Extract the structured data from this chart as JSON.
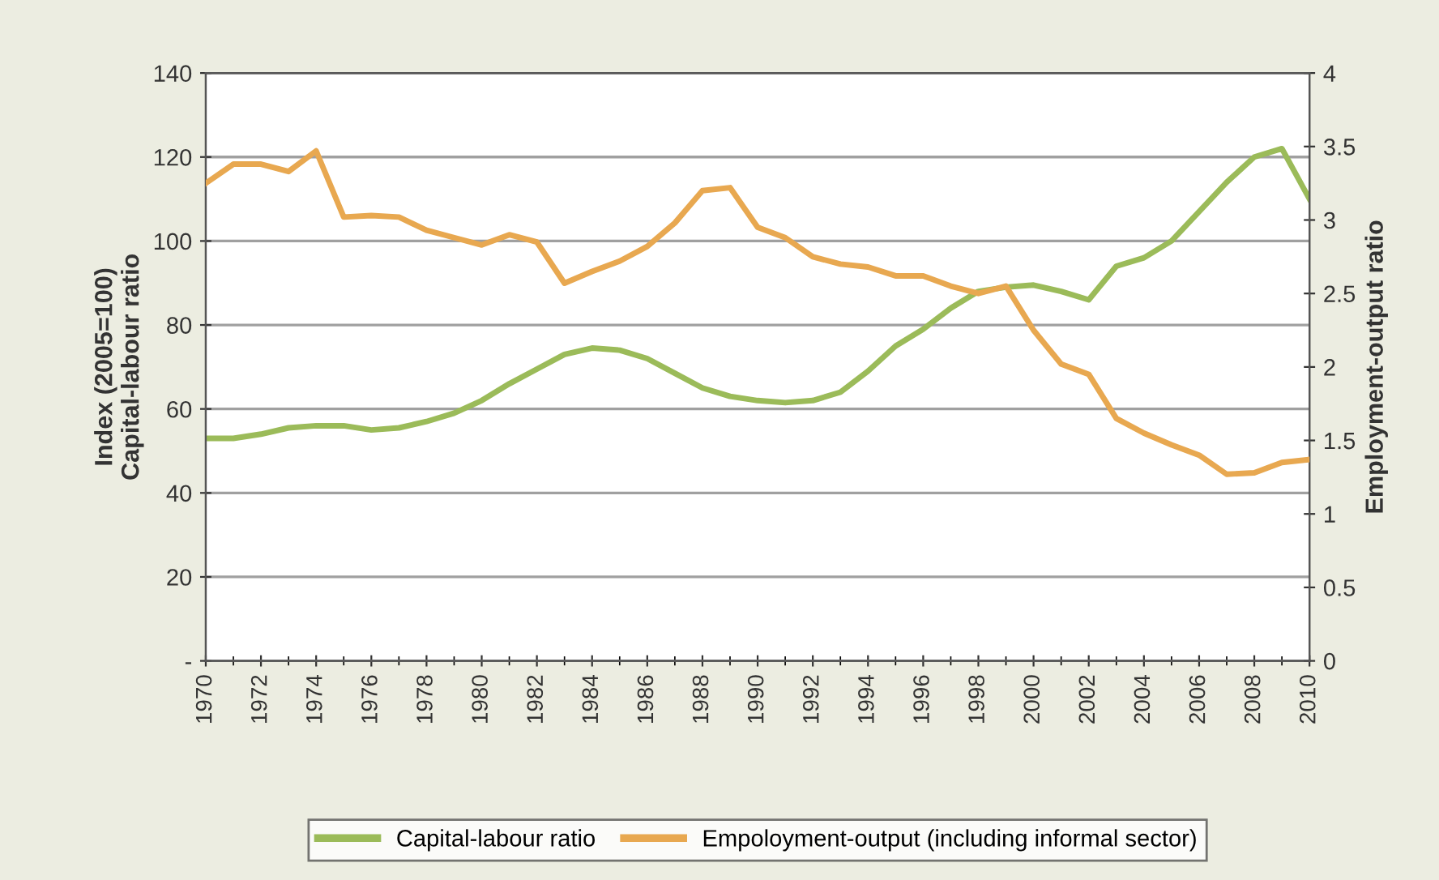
{
  "chart_data": {
    "type": "line",
    "ylabel": "Index (2005=100)\nCapital-labour ratio",
    "y2label": "Employment-output ratio",
    "x": [
      1970,
      1971,
      1972,
      1973,
      1974,
      1975,
      1976,
      1977,
      1978,
      1979,
      1980,
      1981,
      1982,
      1983,
      1984,
      1985,
      1986,
      1987,
      1988,
      1989,
      1990,
      1991,
      1992,
      1993,
      1994,
      1995,
      1996,
      1997,
      1998,
      1999,
      2000,
      2001,
      2002,
      2003,
      2004,
      2005,
      2006,
      2007,
      2008,
      2009,
      2010
    ],
    "xlim": [
      1970,
      2010
    ],
    "xticks": [
      1970,
      1972,
      1974,
      1976,
      1978,
      1980,
      1982,
      1984,
      1986,
      1988,
      1990,
      1992,
      1994,
      1996,
      1998,
      2000,
      2002,
      2004,
      2006,
      2008,
      2010
    ],
    "ylim": [
      0,
      140
    ],
    "yticks": [
      {
        "value": 0,
        "label": "-"
      },
      20,
      40,
      60,
      80,
      100,
      120,
      140
    ],
    "y2lim": [
      0,
      4
    ],
    "y2ticks": [
      0,
      0.5,
      1,
      1.5,
      2,
      2.5,
      3,
      3.5,
      4
    ],
    "grid": "y",
    "legend": "bottom",
    "line_style": "solid",
    "marker": "none",
    "series": [
      {
        "name": "Capital-labour ratio",
        "color": "#9bbb59",
        "values": [
          53,
          53,
          54,
          55.5,
          56,
          56,
          55,
          55.5,
          57,
          59,
          62,
          66,
          69.5,
          73,
          74.5,
          74,
          72,
          68.5,
          65,
          63,
          62,
          61.5,
          62,
          64,
          69,
          75,
          79,
          84,
          88,
          89,
          89.5,
          88,
          86,
          94,
          96,
          100,
          107,
          114,
          120,
          122,
          110
        ]
      },
      {
        "name": "Empoloyment-output (including informal sector)",
        "color": "#e8a850",
        "axis": "y2",
        "values": [
          3.25,
          3.38,
          3.38,
          3.33,
          3.47,
          3.02,
          3.03,
          3.02,
          2.93,
          2.88,
          2.83,
          2.9,
          2.85,
          2.57,
          2.65,
          2.72,
          2.82,
          2.98,
          3.2,
          3.22,
          2.95,
          2.88,
          2.75,
          2.7,
          2.68,
          2.62,
          2.62,
          2.55,
          2.5,
          2.55,
          2.25,
          2.02,
          1.95,
          1.65,
          1.55,
          1.47,
          1.4,
          1.27,
          1.28,
          1.35,
          1.37
        ]
      }
    ]
  }
}
